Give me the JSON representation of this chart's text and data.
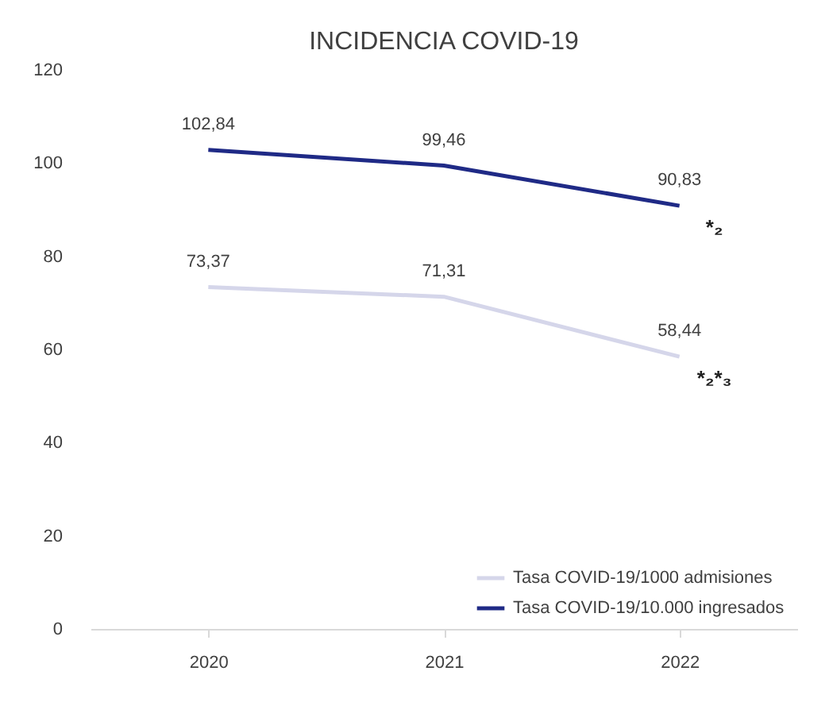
{
  "chart_data": {
    "type": "line",
    "title": "INCIDENCIA COVID-19",
    "categories": [
      "2020",
      "2021",
      "2022"
    ],
    "series": [
      {
        "name": "Tasa COVID-19/1000 admisiones",
        "color": "#d5d6ea",
        "values": [
          73.37,
          71.31,
          58.44
        ],
        "value_labels": [
          "73,37",
          "71,31",
          "58,44"
        ]
      },
      {
        "name": "Tasa COVID-19/10.000 ingresados",
        "color": "#1f2a86",
        "values": [
          102.84,
          99.46,
          90.83
        ],
        "value_labels": [
          "102,84",
          "99,46",
          "90,83"
        ]
      }
    ],
    "ylim": [
      0,
      120
    ],
    "yticks": [
      0,
      20,
      40,
      60,
      80,
      100,
      120
    ],
    "grid": false,
    "legend": "bottom right",
    "marker": "none",
    "line_style": "solid",
    "annotations": [
      {
        "text": "*₂",
        "x": "2022",
        "y": 90.83
      },
      {
        "text": "*₂*₃",
        "x": "2022",
        "y": 58.44
      }
    ]
  }
}
